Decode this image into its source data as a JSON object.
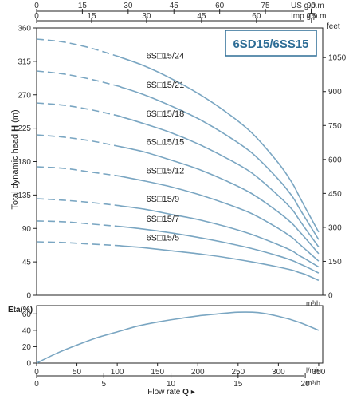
{
  "colors": {
    "curve": "#7aa6c2",
    "axis": "#222222",
    "title_box": "#2d6d96",
    "tick": "#333333"
  },
  "chart_data": [
    {
      "type": "line",
      "title": "6SD15/6SS15",
      "ylabel": "Total dynamic head H (m)",
      "ylabel_main": "Total dynamic head ",
      "ylabel_bold": "H",
      "ylabel_unit": " (m)",
      "ylim": [
        0,
        360
      ],
      "y_ticks": [
        0,
        45,
        90,
        135,
        180,
        225,
        270,
        315,
        360
      ],
      "x_unit_bottom": "m³/h",
      "xlim": [
        0,
        21.3
      ],
      "top_axis_us": {
        "label": "US g.p.m",
        "ticks": [
          0,
          15,
          30,
          45,
          60,
          75,
          90
        ]
      },
      "top_axis_imp": {
        "label": "Imp g.p.m",
        "ticks": [
          0,
          15,
          30,
          45,
          60,
          75
        ]
      },
      "right_axis": {
        "label": "feet",
        "ticks": [
          0,
          150,
          300,
          450,
          600,
          750,
          900,
          1050
        ]
      },
      "series": [
        {
          "name": "6S□15/24",
          "x": [
            0,
            2,
            4,
            6,
            8,
            10,
            12,
            14,
            16,
            18,
            19,
            19.5,
            20,
            21
          ],
          "y": [
            345,
            341,
            333,
            322,
            309,
            292,
            272,
            248,
            219,
            178,
            152,
            135,
            118,
            85
          ]
        },
        {
          "name": "6S□15/21",
          "x": [
            0,
            2,
            4,
            6,
            8,
            10,
            12,
            14,
            16,
            18,
            19,
            19.5,
            20,
            21
          ],
          "y": [
            302,
            298,
            291,
            282,
            270,
            255,
            238,
            217,
            192,
            156,
            134,
            119,
            104,
            75
          ]
        },
        {
          "name": "6S□15/18",
          "x": [
            0,
            2,
            4,
            6,
            8,
            10,
            12,
            14,
            16,
            18,
            19,
            19.5,
            20,
            21
          ],
          "y": [
            259,
            256,
            250,
            242,
            231,
            219,
            204,
            186,
            165,
            134,
            116,
            103,
            90,
            65
          ]
        },
        {
          "name": "6S□15/15",
          "x": [
            0,
            2,
            4,
            6,
            8,
            10,
            12,
            14,
            16,
            18,
            19,
            19.5,
            20,
            21
          ],
          "y": [
            216,
            213,
            208,
            201,
            193,
            182,
            170,
            155,
            137,
            112,
            97,
            87,
            77,
            56
          ]
        },
        {
          "name": "6S□15/12",
          "x": [
            0,
            2,
            4,
            6,
            8,
            10,
            12,
            14,
            16,
            18,
            19,
            19.5,
            20,
            21
          ],
          "y": [
            173,
            171,
            166,
            161,
            154,
            146,
            136,
            124,
            110,
            90,
            78,
            70,
            62,
            46
          ]
        },
        {
          "name": "6S□15/9",
          "x": [
            0,
            2,
            4,
            6,
            8,
            10,
            12,
            14,
            16,
            18,
            19,
            19.5,
            20,
            21
          ],
          "y": [
            130,
            128,
            125,
            121,
            116,
            109,
            102,
            93,
            82,
            68,
            60,
            54,
            49,
            38
          ]
        },
        {
          "name": "6S□15/7",
          "x": [
            0,
            2,
            4,
            6,
            8,
            10,
            12,
            14,
            16,
            18,
            19,
            19.5,
            20,
            21
          ],
          "y": [
            100,
            99,
            96,
            93,
            89,
            84,
            78,
            71,
            63,
            53,
            47,
            43,
            39,
            30
          ]
        },
        {
          "name": "6S□15/5",
          "x": [
            0,
            2,
            4,
            6,
            8,
            10,
            12,
            14,
            16,
            18,
            19,
            19.5,
            20,
            21
          ],
          "y": [
            72,
            71,
            69,
            67,
            64,
            60,
            56,
            51,
            45,
            38,
            34,
            31,
            28,
            20
          ]
        }
      ]
    },
    {
      "type": "line",
      "ylabel": "Eta(%)",
      "ylim": [
        0,
        70
      ],
      "y_ticks": [
        0,
        20,
        40,
        60
      ],
      "x_lpm": {
        "unit": "l/min",
        "ticks": [
          0,
          50,
          100,
          150,
          200,
          250,
          300,
          350
        ]
      },
      "x_m3h": {
        "unit": "m³/h",
        "ticks": [
          0,
          5,
          10,
          15,
          20
        ]
      },
      "xlabel": "Flow rate Q ▸",
      "xlabel_main": "Flow rate ",
      "xlabel_bold": "Q",
      "xlabel_arrow": " ▸",
      "xlim": [
        0,
        21.3
      ],
      "series": [
        {
          "name": "",
          "x": [
            0,
            1.5,
            3,
            4.5,
            6,
            7.5,
            9,
            10.5,
            12,
            13.5,
            15,
            16.5,
            18,
            19.5,
            21
          ],
          "y": [
            0,
            12,
            22,
            31,
            38,
            45,
            50,
            54,
            57.5,
            60,
            62,
            61.5,
            57,
            50,
            40
          ]
        }
      ]
    }
  ]
}
